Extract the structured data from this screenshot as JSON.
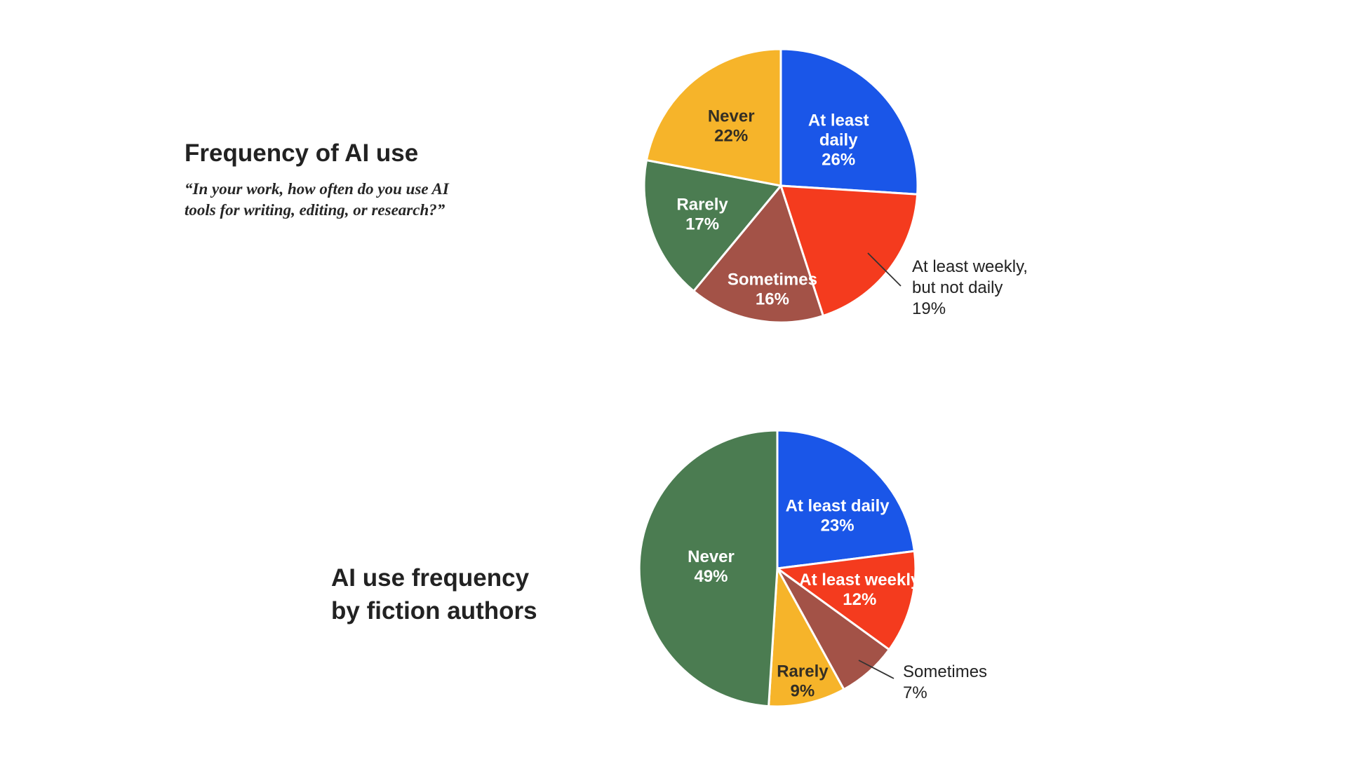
{
  "page": {
    "background": "#ffffff",
    "text_color": "#222222",
    "leader_line_color": "#333333"
  },
  "chart_data": [
    {
      "type": "pie",
      "title": "Frequency of AI use",
      "subtitle": "“In your work, how often do you use AI tools for writing, editing, or research?”",
      "subtitle_lines": [
        "“In your work, how often do you use AI",
        "tools for writing, editing, or research?”"
      ],
      "start_angle_deg": 0,
      "direction": "clockwise",
      "legend": "none",
      "slices": [
        {
          "label": "At least daily",
          "value_pct": 26,
          "color": "#1A56E8",
          "label_color": "#FFFFFF",
          "label_lines": [
            "At least",
            "daily",
            "26%"
          ],
          "placement": "inside"
        },
        {
          "label": "At least weekly, but not daily",
          "value_pct": 19,
          "color": "#F43B1E",
          "label_color": "#222222",
          "label_lines": [
            "At least weekly,",
            "but not daily",
            "19%"
          ],
          "placement": "outside"
        },
        {
          "label": "Sometimes",
          "value_pct": 16,
          "color": "#A35247",
          "label_color": "#FFFFFF",
          "label_lines": [
            "Sometimes",
            "16%"
          ],
          "placement": "inside"
        },
        {
          "label": "Rarely",
          "value_pct": 17,
          "color": "#4B7C51",
          "label_color": "#FFFFFF",
          "label_lines": [
            "Rarely",
            "17%"
          ],
          "placement": "inside"
        },
        {
          "label": "Never",
          "value_pct": 22,
          "color": "#F6B42A",
          "label_color": "#332E24",
          "label_lines": [
            "Never",
            "22%"
          ],
          "placement": "inside"
        }
      ]
    },
    {
      "type": "pie",
      "title": "AI use frequency by fiction authors",
      "title_lines": [
        "AI use frequency",
        "by fiction authors"
      ],
      "start_angle_deg": 0,
      "direction": "clockwise",
      "legend": "none",
      "slices": [
        {
          "label": "At least daily",
          "value_pct": 23,
          "color": "#1A56E8",
          "label_color": "#FFFFFF",
          "label_lines": [
            "At least daily",
            "23%"
          ],
          "placement": "inside"
        },
        {
          "label": "At least weekly",
          "value_pct": 12,
          "color": "#F43B1E",
          "label_color": "#FFFFFF",
          "label_lines": [
            "At least weekly",
            "12%"
          ],
          "placement": "inside"
        },
        {
          "label": "Sometimes",
          "value_pct": 7,
          "color": "#A35247",
          "label_color": "#222222",
          "label_lines": [
            "Sometimes",
            "7%"
          ],
          "placement": "outside"
        },
        {
          "label": "Rarely",
          "value_pct": 9,
          "color": "#F6B42A",
          "label_color": "#332E24",
          "label_lines": [
            "Rarely",
            "9%"
          ],
          "placement": "inside"
        },
        {
          "label": "Never",
          "value_pct": 49,
          "color": "#4B7C51",
          "label_color": "#FFFFFF",
          "label_lines": [
            "Never",
            "49%"
          ],
          "placement": "inside"
        }
      ]
    }
  ]
}
